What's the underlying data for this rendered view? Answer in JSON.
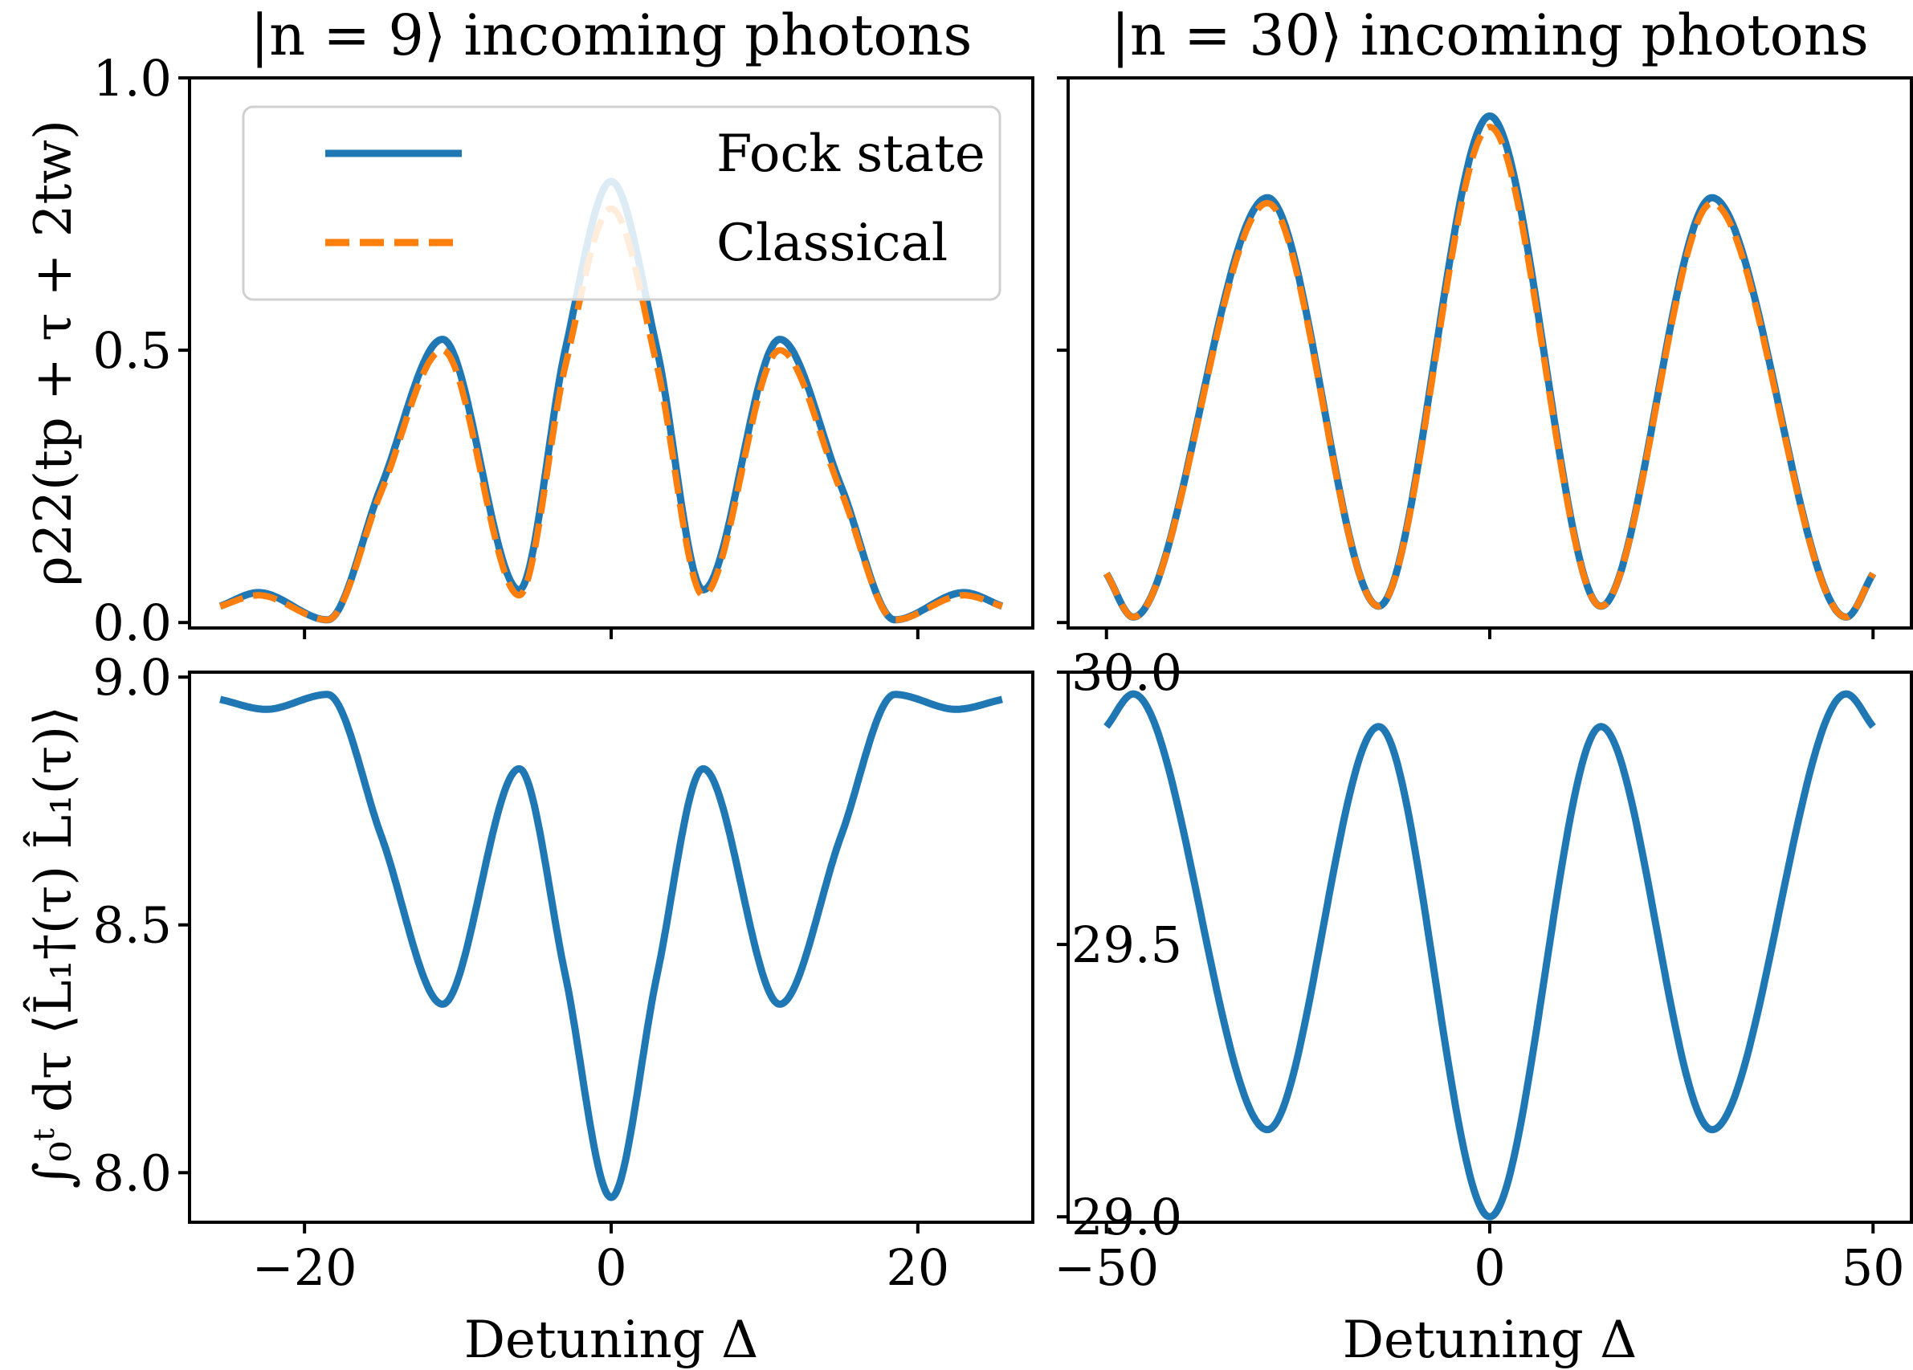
{
  "chart_data": [
    {
      "type": "line",
      "panel": "top-left",
      "title": "|n = 9⟩ incoming photons",
      "ylabel": "ρ22(tp + τ + 2tw)",
      "xlabel": "",
      "xlim": [
        -27.5,
        27.5
      ],
      "ylim": [
        -0.01,
        1.0
      ],
      "xticks": [
        -20,
        0,
        20
      ],
      "yticks": [
        0.0,
        0.5,
        1.0
      ],
      "ytick_labels": [
        "0.0",
        "0.5",
        "1.0"
      ],
      "xtick_labels_visible": false,
      "legend": {
        "placement": "top-left",
        "entries": [
          "Fock state",
          "Classical"
        ]
      },
      "series": [
        {
          "name": "Fock state",
          "color": "#1f77b4",
          "style": "solid",
          "points": [
            [
              -25.5,
              0.03
            ],
            [
              -23,
              0.055
            ],
            [
              -18.5,
              0.005
            ],
            [
              -15,
              0.25
            ],
            [
              -11,
              0.52
            ],
            [
              -6,
              0.06
            ],
            [
              -3,
              0.5
            ],
            [
              0,
              0.81
            ],
            [
              3,
              0.5
            ],
            [
              6,
              0.06
            ],
            [
              11,
              0.52
            ],
            [
              15,
              0.25
            ],
            [
              18.5,
              0.005
            ],
            [
              23,
              0.055
            ],
            [
              25.5,
              0.03
            ]
          ]
        },
        {
          "name": "Classical",
          "color": "#ff7f0e",
          "style": "dashed",
          "points": [
            [
              -25.5,
              0.03
            ],
            [
              -23,
              0.05
            ],
            [
              -18.5,
              0.005
            ],
            [
              -15,
              0.24
            ],
            [
              -11,
              0.5
            ],
            [
              -6,
              0.05
            ],
            [
              -3,
              0.47
            ],
            [
              0,
              0.76
            ],
            [
              3,
              0.47
            ],
            [
              6,
              0.05
            ],
            [
              11,
              0.5
            ],
            [
              15,
              0.24
            ],
            [
              18.5,
              0.005
            ],
            [
              23,
              0.05
            ],
            [
              25.5,
              0.03
            ]
          ]
        }
      ]
    },
    {
      "type": "line",
      "panel": "top-right",
      "title": "|n = 30⟩ incoming photons",
      "xlabel": "",
      "ylabel": "",
      "xlim": [
        -55,
        55
      ],
      "ylim": [
        -0.01,
        1.0
      ],
      "xticks": [
        -50,
        0,
        50
      ],
      "yticks": [
        0.0,
        0.5,
        1.0
      ],
      "xtick_labels_visible": false,
      "ytick_labels_visible": false,
      "series": [
        {
          "name": "Fock state",
          "color": "#1f77b4",
          "style": "solid",
          "points": [
            [
              -50,
              0.09
            ],
            [
              -46.5,
              0.01
            ],
            [
              -29,
              0.78
            ],
            [
              -14.5,
              0.03
            ],
            [
              0,
              0.93
            ],
            [
              14.5,
              0.03
            ],
            [
              29,
              0.78
            ],
            [
              46.5,
              0.01
            ],
            [
              50,
              0.09
            ]
          ]
        },
        {
          "name": "Classical",
          "color": "#ff7f0e",
          "style": "dashed",
          "points": [
            [
              -50,
              0.09
            ],
            [
              -46.5,
              0.01
            ],
            [
              -29,
              0.77
            ],
            [
              -14.5,
              0.03
            ],
            [
              0,
              0.91
            ],
            [
              14.5,
              0.03
            ],
            [
              29,
              0.77
            ],
            [
              46.5,
              0.01
            ],
            [
              50,
              0.09
            ]
          ]
        }
      ]
    },
    {
      "type": "line",
      "panel": "bottom-left",
      "title": "",
      "ylabel": "∫₀ᵗ dτ ⟨L̂₁†(τ) L̂₁(τ)⟩",
      "xlabel": "Detuning Δ",
      "xlim": [
        -27.5,
        27.5
      ],
      "ylim": [
        7.9,
        9.01
      ],
      "xticks": [
        -20,
        0,
        20
      ],
      "xtick_labels": [
        "−20",
        "0",
        "20"
      ],
      "yticks": [
        8.0,
        8.5,
        9.0
      ],
      "ytick_labels": [
        "8.0",
        "8.5",
        "9.0"
      ],
      "series": [
        {
          "name": "Fock state",
          "color": "#1f77b4",
          "style": "solid",
          "points": [
            [
              -25.5,
              8.955
            ],
            [
              -22.5,
              8.935
            ],
            [
              -18.5,
              8.965
            ],
            [
              -15,
              8.68
            ],
            [
              -11,
              8.34
            ],
            [
              -6,
              8.815
            ],
            [
              -3,
              8.4
            ],
            [
              0,
              7.95
            ],
            [
              3,
              8.4
            ],
            [
              6,
              8.815
            ],
            [
              11,
              8.34
            ],
            [
              15,
              8.68
            ],
            [
              18.5,
              8.965
            ],
            [
              22.5,
              8.935
            ],
            [
              25.5,
              8.955
            ]
          ]
        }
      ]
    },
    {
      "type": "line",
      "panel": "bottom-right",
      "title": "",
      "ylabel": "",
      "xlabel": "Detuning Δ",
      "xlim": [
        -55,
        55
      ],
      "ylim": [
        28.99,
        30.0
      ],
      "xticks": [
        -50,
        0,
        50
      ],
      "xtick_labels": [
        "−50",
        "0",
        "50"
      ],
      "yticks": [
        29.0,
        29.5,
        30.0
      ],
      "ytick_labels": [
        "29.0",
        "29.5",
        "30.0"
      ],
      "series": [
        {
          "name": "Fock state",
          "color": "#1f77b4",
          "style": "solid",
          "points": [
            [
              -50,
              29.9
            ],
            [
              -46.5,
              29.96
            ],
            [
              -29,
              29.16
            ],
            [
              -14.5,
              29.9
            ],
            [
              0,
              29.0
            ],
            [
              14.5,
              29.9
            ],
            [
              29,
              29.16
            ],
            [
              46.5,
              29.96
            ],
            [
              50,
              29.9
            ]
          ]
        }
      ]
    }
  ]
}
